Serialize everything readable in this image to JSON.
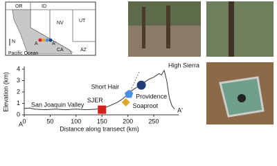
{
  "map": {
    "labels": [
      "OR",
      "ID",
      "NV",
      "UT",
      "CA",
      "AZ",
      "N",
      "Pacific Ocean",
      "A",
      "A'"
    ]
  },
  "chart_data": {
    "type": "line",
    "x": [
      0,
      10,
      20,
      40,
      60,
      80,
      100,
      120,
      140,
      150,
      160,
      170,
      180,
      190,
      200,
      210,
      220,
      230,
      240,
      250,
      260,
      265,
      270,
      275,
      280,
      285,
      290
    ],
    "values": [
      0.55,
      0.6,
      0.5,
      0.45,
      0.5,
      0.45,
      0.5,
      0.45,
      0.5,
      0.55,
      0.7,
      0.9,
      1.1,
      1.4,
      1.8,
      2.2,
      2.5,
      2.8,
      3.1,
      3.3,
      3.6,
      3.5,
      3.9,
      3.0,
      1.5,
      0.8,
      0.5
    ],
    "color": "#333333",
    "xlim": [
      0,
      290
    ],
    "ylim": [
      0,
      4
    ],
    "xticks": [
      0,
      50,
      100,
      150,
      200,
      250
    ],
    "yticks": [
      0,
      1,
      2,
      3,
      4
    ],
    "x_label": "Distance along transect (km)",
    "y_label": "Elevation (km)",
    "annotations": [
      "San Joaquin Valley",
      "High Sierra",
      "A",
      "A'"
    ],
    "sites": [
      {
        "name": "SJER",
        "x": 150,
        "y": 0.45,
        "color": "#d62020",
        "shape": "square"
      },
      {
        "name": "Soaproot",
        "x": 196,
        "y": 1.1,
        "color": "#e0a82a",
        "shape": "diamond"
      },
      {
        "name": "Providence",
        "x": 202,
        "y": 1.8,
        "color": "#4a90e2",
        "shape": "pentagon"
      },
      {
        "name": "Short Hair",
        "x": 226,
        "y": 2.6,
        "color": "#1f3f7a",
        "shape": "circle"
      }
    ]
  }
}
